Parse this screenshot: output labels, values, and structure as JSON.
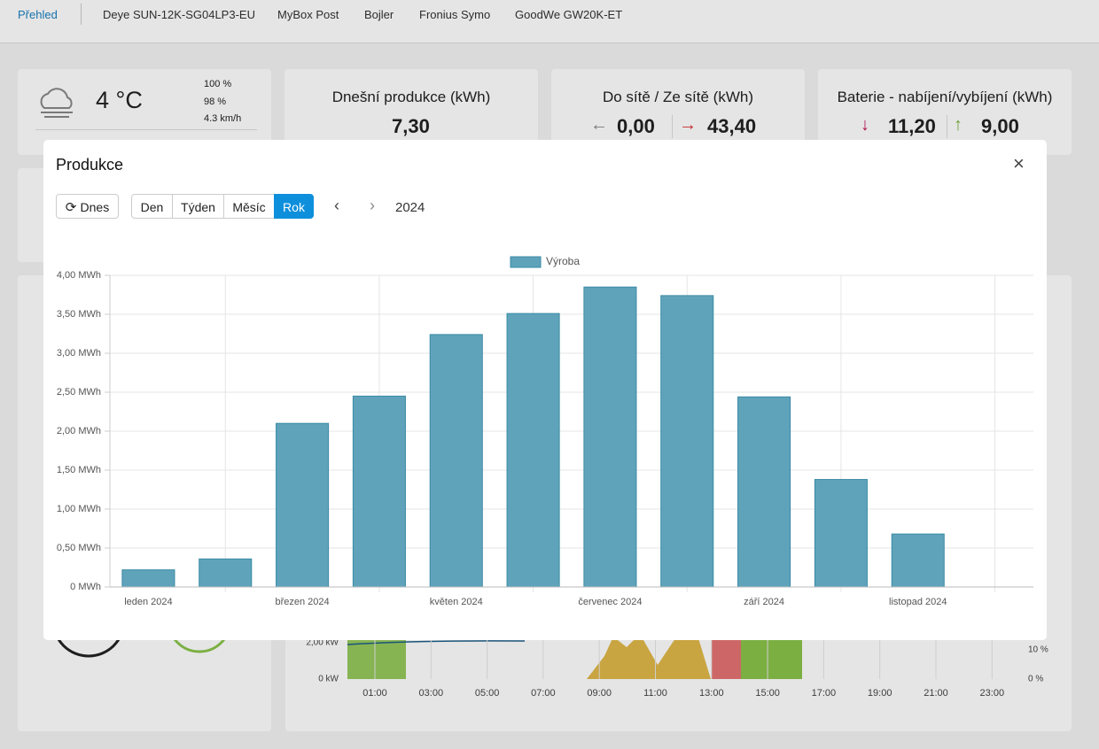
{
  "nav": {
    "items": [
      "Přehled",
      "Deye SUN-12K-SG04LP3-EU",
      "MyBox Post",
      "Bojler",
      "Fronius Symo",
      "GoodWe GW20K-ET"
    ],
    "active_index": 0
  },
  "weather": {
    "temperature": "4 °C",
    "rain": "100 %",
    "clouds": "98 %",
    "wind": "4.3 km/h"
  },
  "cards": [
    {
      "title": "Dnešní produkce (kWh)",
      "values": [
        "7,30"
      ]
    },
    {
      "title": "Do sítě / Ze sítě (kWh)",
      "values": [
        "0,00",
        "43,40"
      ]
    },
    {
      "title": "Baterie - nabíjení/vybíjení (kWh)",
      "values": [
        "11,20",
        "9,00"
      ]
    }
  ],
  "background_chart": {
    "xticks": [
      "01:00",
      "03:00",
      "05:00",
      "07:00",
      "09:00",
      "11:00",
      "13:00",
      "15:00",
      "17:00",
      "19:00",
      "21:00",
      "23:00"
    ],
    "yticks": [
      "0 kW",
      "2,00 kW"
    ],
    "y2ticks": [
      "0 %",
      "10 %"
    ]
  },
  "modal": {
    "title": "Produkce",
    "today_button": "Dnes",
    "periods": [
      "Den",
      "Týden",
      "Měsíc",
      "Rok"
    ],
    "active_period_index": 3,
    "year": "2024"
  },
  "chart_data": {
    "type": "bar",
    "categories": [
      "leden 2024",
      null,
      "březen 2024",
      null,
      "květen 2024",
      null,
      "červenec 2024",
      null,
      "září 2024",
      null,
      "listopad 2024",
      null
    ],
    "series": [
      {
        "name": "Výroba",
        "color": "#5fa3bb",
        "border_color": "#3a8aa4",
        "values": [
          0.22,
          0.36,
          2.1,
          2.45,
          3.24,
          3.51,
          3.85,
          3.74,
          2.44,
          1.38,
          0.68,
          null
        ]
      }
    ],
    "ylim": [
      0,
      4
    ],
    "yticks": [
      {
        "value": 0,
        "label": "0 MWh"
      },
      {
        "value": 0.5,
        "label": "0,50 MWh"
      },
      {
        "value": 1,
        "label": "1,00 MWh"
      },
      {
        "value": 1.5,
        "label": "1,50 MWh"
      },
      {
        "value": 2,
        "label": "2,00 MWh"
      },
      {
        "value": 2.5,
        "label": "2,50 MWh"
      },
      {
        "value": 3,
        "label": "3,00 MWh"
      },
      {
        "value": 3.5,
        "label": "3,50 MWh"
      },
      {
        "value": 4,
        "label": "4,00 MWh"
      }
    ],
    "grid": true,
    "legend": "top"
  }
}
